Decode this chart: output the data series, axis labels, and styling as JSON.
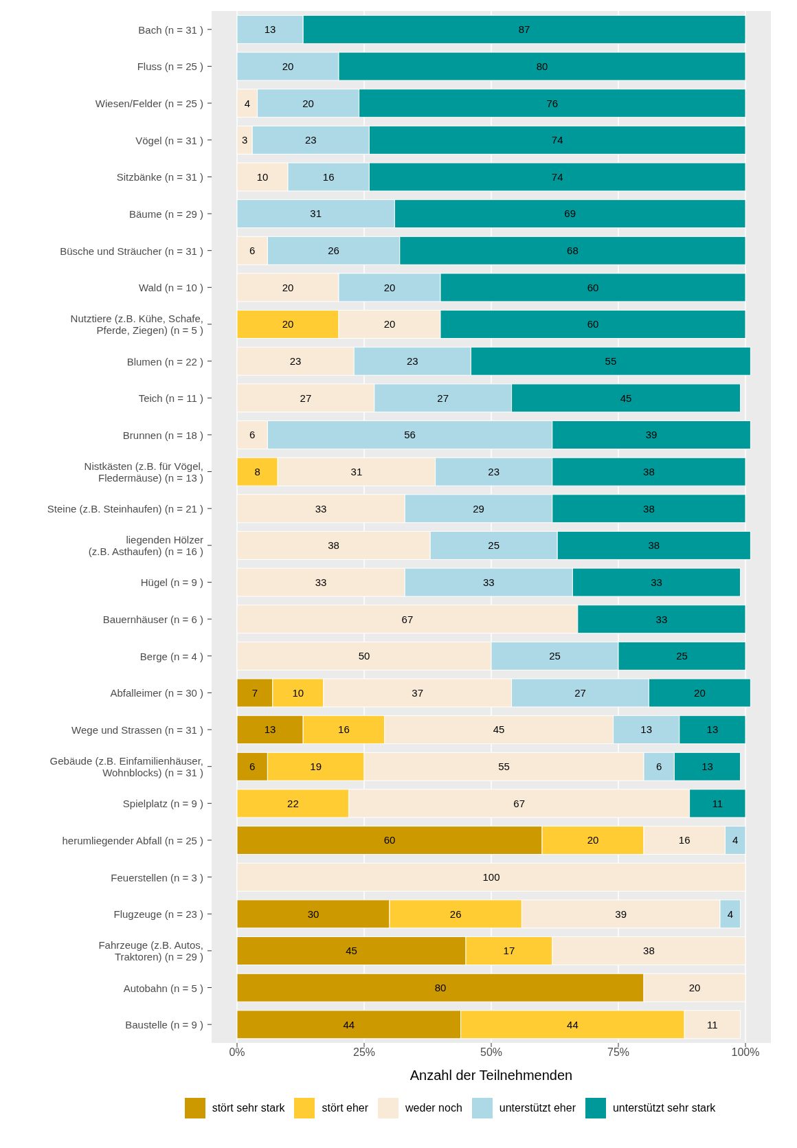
{
  "chart_data": {
    "type": "bar",
    "orientation": "horizontal",
    "stacked": true,
    "xlabel": "Anzahl der Teilnehmenden",
    "categories": [
      "Bach (n = 31 )",
      "Fluss (n = 25 )",
      "Wiesen/Felder (n = 25 )",
      "Vögel (n = 31 )",
      "Sitzbänke (n = 31 )",
      "Bäume (n = 29 )",
      "Büsche und Sträucher (n = 31 )",
      "Wald (n = 10 )",
      "Nutztiere (z.B. Kühe, Schafe,\nPferde, Ziegen) (n = 5 )",
      "Blumen (n = 22 )",
      "Teich (n = 11 )",
      "Brunnen (n = 18 )",
      "Nistkästen (z.B. für Vögel,\nFledermäuse) (n = 13 )",
      "Steine (z.B. Steinhaufen) (n = 21 )",
      "liegenden Hölzer\n(z.B. Asthaufen) (n = 16 )",
      "Hügel (n = 9 )",
      "Bauernhäuser (n = 6 )",
      "Berge (n = 4 )",
      "Abfalleimer (n = 30 )",
      "Wege und Strassen (n = 31 )",
      "Gebäude (z.B. Einfamilienhäuser,\nWohnblocks)  (n = 31 )",
      "Spielplatz (n = 9 )",
      "herumliegender Abfall (n = 25 )",
      "Feuerstellen (n = 3 )",
      "Flugzeuge (n = 23 )",
      "Fahrzeuge (z.B. Autos,\nTraktoren) (n = 29 )",
      "Autobahn (n = 5 )",
      "Baustelle (n = 9 )"
    ],
    "series": [
      {
        "name": "stört sehr stark",
        "color": "#cc9900",
        "values": [
          null,
          null,
          null,
          null,
          null,
          null,
          null,
          null,
          null,
          null,
          null,
          null,
          null,
          null,
          null,
          null,
          null,
          null,
          7,
          13,
          6,
          null,
          60,
          null,
          30,
          45,
          80,
          44
        ]
      },
      {
        "name": "stört eher",
        "color": "#ffcc33",
        "values": [
          null,
          null,
          null,
          null,
          null,
          null,
          null,
          null,
          20,
          null,
          null,
          null,
          8,
          null,
          null,
          null,
          null,
          null,
          10,
          16,
          19,
          22,
          20,
          null,
          26,
          17,
          null,
          44
        ]
      },
      {
        "name": "weder noch",
        "color": "#f8ead7",
        "values": [
          null,
          null,
          4,
          3,
          10,
          null,
          6,
          20,
          20,
          23,
          27,
          6,
          31,
          33,
          38,
          33,
          67,
          50,
          37,
          45,
          55,
          67,
          16,
          100,
          39,
          38,
          20,
          11
        ]
      },
      {
        "name": "unterstützt eher",
        "color": "#add8e6",
        "values": [
          13,
          20,
          20,
          23,
          16,
          31,
          26,
          20,
          null,
          23,
          27,
          56,
          23,
          29,
          25,
          33,
          null,
          25,
          27,
          13,
          6,
          null,
          4,
          null,
          4,
          null,
          null,
          null
        ]
      },
      {
        "name": "unterstützt sehr stark",
        "color": "#009999",
        "values": [
          87,
          80,
          76,
          74,
          74,
          69,
          68,
          60,
          60,
          55,
          45,
          39,
          38,
          38,
          38,
          33,
          33,
          25,
          20,
          13,
          13,
          11,
          null,
          null,
          null,
          null,
          null,
          null
        ]
      }
    ],
    "xlim": [
      -5,
      105
    ],
    "xticks": [
      {
        "value": 0,
        "label": "0%"
      },
      {
        "value": 25,
        "label": "25%"
      },
      {
        "value": 50,
        "label": "50%"
      },
      {
        "value": 75,
        "label": "75%"
      },
      {
        "value": 100,
        "label": "100%"
      }
    ],
    "grid": "x",
    "legend": "bottom",
    "data_labels": true
  }
}
